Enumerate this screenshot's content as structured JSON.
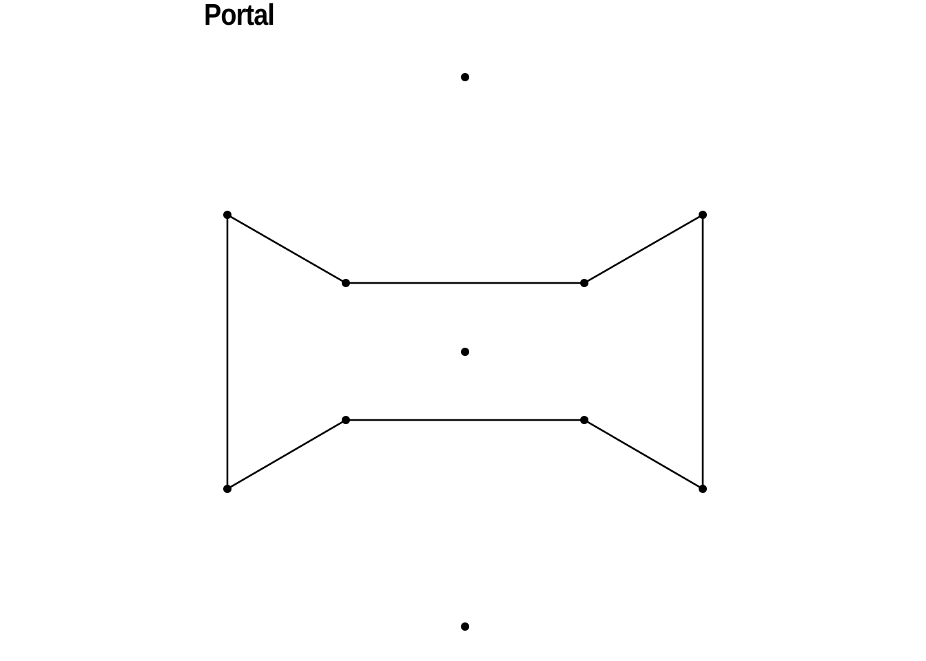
{
  "title": "Portal",
  "colors": {
    "stroke": "#000000",
    "node": "#000000",
    "background": "#ffffff"
  },
  "graph": {
    "nodes": [
      {
        "id": "n1"
      },
      {
        "id": "n2"
      },
      {
        "id": "n3"
      },
      {
        "id": "n4"
      },
      {
        "id": "n5"
      },
      {
        "id": "n6"
      },
      {
        "id": "n7"
      },
      {
        "id": "n8"
      },
      {
        "id": "n9"
      },
      {
        "id": "n10"
      },
      {
        "id": "n11"
      }
    ],
    "edges": [
      [
        "n2",
        "n3"
      ],
      [
        "n3",
        "n4"
      ],
      [
        "n4",
        "n5"
      ],
      [
        "n5",
        "n10"
      ],
      [
        "n10",
        "n9"
      ],
      [
        "n9",
        "n8"
      ],
      [
        "n8",
        "n7"
      ],
      [
        "n7",
        "n2"
      ]
    ]
  }
}
